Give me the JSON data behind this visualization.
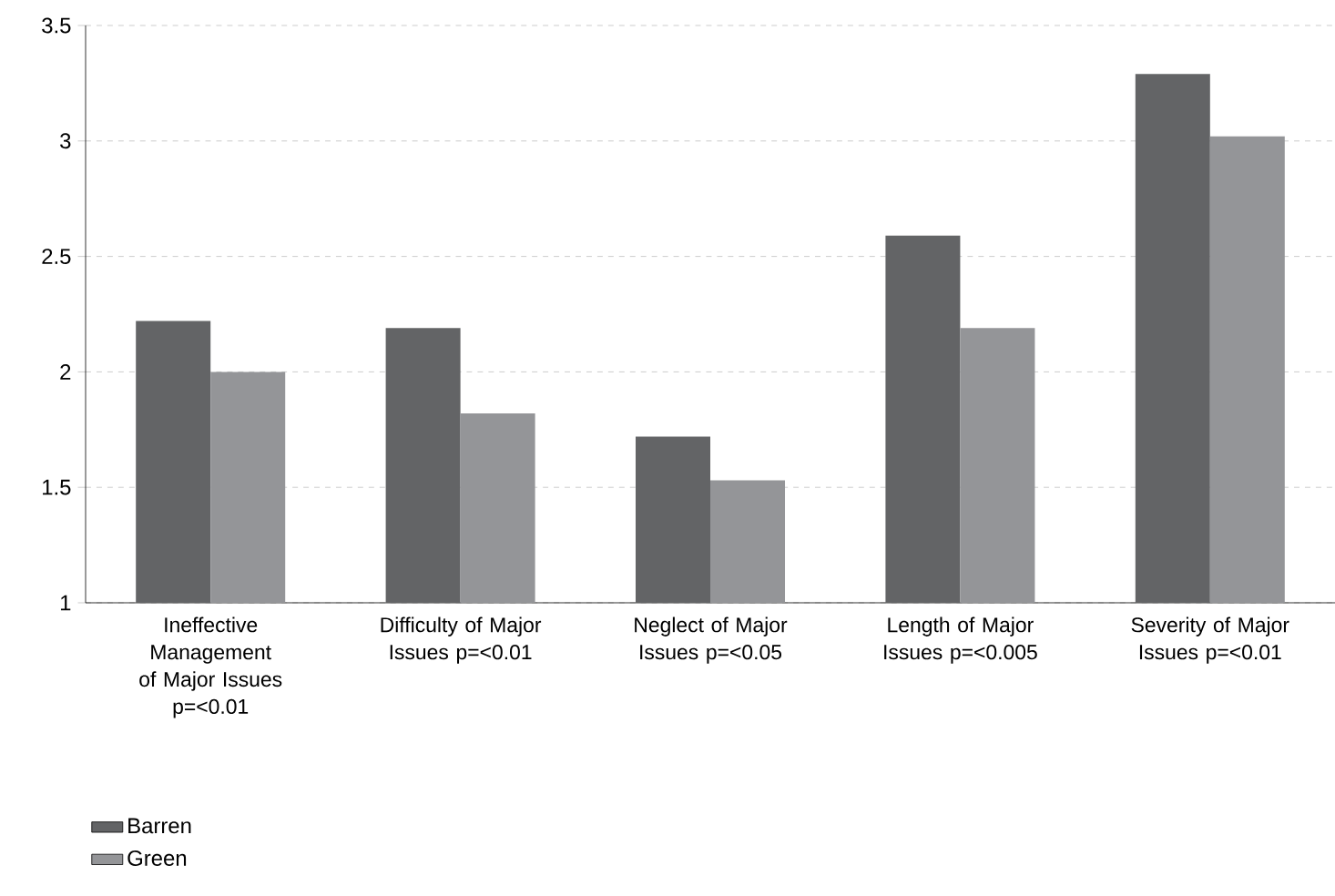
{
  "chart_data": {
    "type": "bar",
    "categories": [
      "Ineffective Management of Major Issues p=<0.01",
      "Difficulty of Major Issues p=<0.01",
      "Neglect of Major Issues p=<0.05",
      "Length of Major Issues p=<0.005",
      "Severity of Major Issues p=<0.01"
    ],
    "series": [
      {
        "name": "Barren",
        "color": "#636466",
        "values": [
          2.22,
          2.19,
          1.72,
          2.59,
          3.29
        ]
      },
      {
        "name": "Green",
        "color": "#949598",
        "values": [
          2.0,
          1.82,
          1.53,
          2.19,
          3.02
        ]
      }
    ],
    "ylim": [
      1,
      3.5
    ],
    "yticks": [
      1,
      1.5,
      2,
      2.5,
      3,
      3.5
    ],
    "grid": "y",
    "legend": "bottom left"
  }
}
